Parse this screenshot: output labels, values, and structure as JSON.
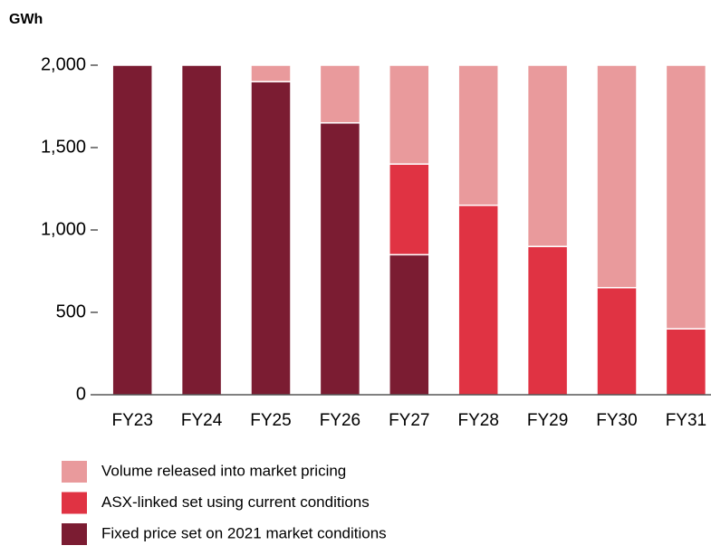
{
  "chart_data": {
    "type": "stacked_bar",
    "y_label": "GWh",
    "categories": [
      "FY23",
      "FY24",
      "FY25",
      "FY26",
      "FY27",
      "FY28",
      "FY29",
      "FY30",
      "FY31"
    ],
    "series": [
      {
        "name": "Fixed price set on 2021 market conditions",
        "color": "#7b1c32",
        "values": [
          2000,
          2000,
          1900,
          1650,
          850,
          0,
          0,
          0,
          0
        ]
      },
      {
        "name": "ASX-linked set using current conditions",
        "color": "#e03343",
        "values": [
          0,
          0,
          0,
          0,
          550,
          1150,
          900,
          650,
          400
        ]
      },
      {
        "name": "Volume released into market pricing",
        "color": "#e99a9c",
        "values": [
          0,
          0,
          100,
          350,
          600,
          850,
          1100,
          1350,
          1600
        ]
      }
    ],
    "ylim": [
      0,
      2000
    ],
    "yticks": [
      0,
      500,
      {
        "value": 1000,
        "label": "1,000"
      },
      {
        "value": 1500,
        "label": "1,500"
      },
      {
        "value": 2000,
        "label": "2,000"
      }
    ]
  }
}
